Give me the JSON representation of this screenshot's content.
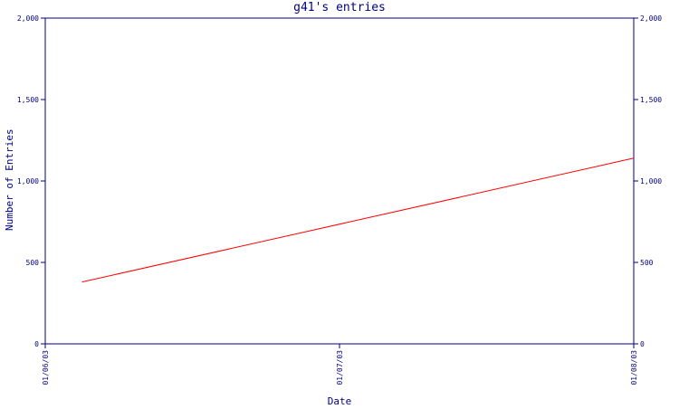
{
  "chart_data": {
    "type": "line",
    "title": "g41's entries",
    "xlabel": "Date",
    "ylabel": "Number of Entries",
    "x_ticks": [
      "01/06/03",
      "01/07/03",
      "01/08/03"
    ],
    "x": [
      "2003-01-06T03:00",
      "2003-01-08T00:00"
    ],
    "ylim": [
      0,
      2000
    ],
    "y_ticks": [
      "0",
      "500",
      "1,000",
      "1,500",
      "2,000"
    ],
    "y_tick_values": [
      0,
      500,
      1000,
      1500,
      2000
    ],
    "series": [
      {
        "values": [
          380,
          1140
        ],
        "color": "#ff0000"
      }
    ],
    "axis_color": "#000080",
    "grid": false,
    "right_axis": true
  }
}
